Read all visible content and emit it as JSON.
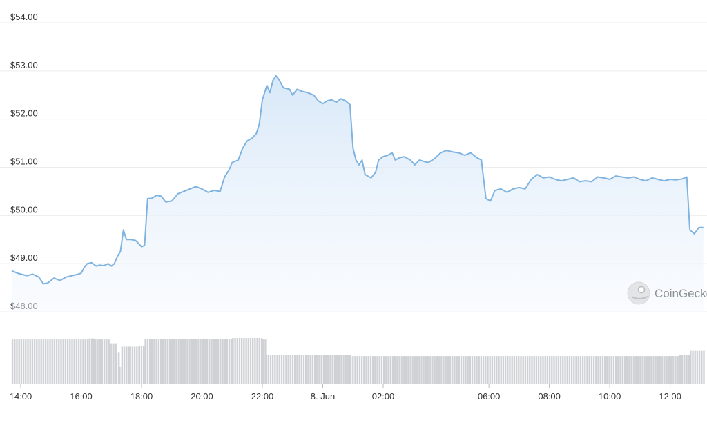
{
  "chart_data": {
    "type": "area",
    "title": "",
    "xlabel": "",
    "ylabel": "",
    "ylim": [
      48.0,
      54.0
    ],
    "grid": true,
    "y_ticks": [
      "$54.00",
      "$53.00",
      "$52.00",
      "$51.00",
      "$50.00",
      "$49.00",
      "$48.00"
    ],
    "y_tick_values": [
      54,
      53,
      52,
      51,
      50,
      49,
      48
    ],
    "x_ticks": [
      {
        "label": "14:00",
        "t": 0
      },
      {
        "label": "16:00",
        "t": 2
      },
      {
        "label": "18:00",
        "t": 4
      },
      {
        "label": "20:00",
        "t": 6
      },
      {
        "label": "22:00",
        "t": 8
      },
      {
        "label": "8. Jun",
        "t": 10
      },
      {
        "label": "02:00",
        "t": 12
      },
      {
        "label": "06:00",
        "t": 15.5
      },
      {
        "label": "08:00",
        "t": 17.5
      },
      {
        "label": "10:00",
        "t": 19.5
      },
      {
        "label": "12:00",
        "t": 21.5
      }
    ],
    "x_unit": "hours since 14:00",
    "series": [
      {
        "kind": "price",
        "color": "#7fb3e0",
        "points": [
          [
            -0.3,
            48.85
          ],
          [
            -0.1,
            48.8
          ],
          [
            0.2,
            48.75
          ],
          [
            0.4,
            48.78
          ],
          [
            0.6,
            48.72
          ],
          [
            0.75,
            48.58
          ],
          [
            0.9,
            48.6
          ],
          [
            1.1,
            48.7
          ],
          [
            1.3,
            48.65
          ],
          [
            1.5,
            48.72
          ],
          [
            1.7,
            48.75
          ],
          [
            1.9,
            48.78
          ],
          [
            2.0,
            48.8
          ],
          [
            2.1,
            48.92
          ],
          [
            2.2,
            49.0
          ],
          [
            2.35,
            49.02
          ],
          [
            2.5,
            48.95
          ],
          [
            2.6,
            48.97
          ],
          [
            2.75,
            48.96
          ],
          [
            2.9,
            49.0
          ],
          [
            3.0,
            48.95
          ],
          [
            3.1,
            49.0
          ],
          [
            3.2,
            49.15
          ],
          [
            3.3,
            49.25
          ],
          [
            3.4,
            49.7
          ],
          [
            3.5,
            49.5
          ],
          [
            3.65,
            49.5
          ],
          [
            3.8,
            49.48
          ],
          [
            3.9,
            49.42
          ],
          [
            4.0,
            49.35
          ],
          [
            4.1,
            49.38
          ],
          [
            4.2,
            50.35
          ],
          [
            4.35,
            50.36
          ],
          [
            4.5,
            50.42
          ],
          [
            4.65,
            50.4
          ],
          [
            4.8,
            50.28
          ],
          [
            5.0,
            50.3
          ],
          [
            5.2,
            50.45
          ],
          [
            5.4,
            50.5
          ],
          [
            5.6,
            50.55
          ],
          [
            5.8,
            50.6
          ],
          [
            6.0,
            50.55
          ],
          [
            6.2,
            50.48
          ],
          [
            6.4,
            50.52
          ],
          [
            6.6,
            50.5
          ],
          [
            6.75,
            50.8
          ],
          [
            6.9,
            50.95
          ],
          [
            7.0,
            51.1
          ],
          [
            7.2,
            51.15
          ],
          [
            7.35,
            51.4
          ],
          [
            7.5,
            51.55
          ],
          [
            7.65,
            51.6
          ],
          [
            7.8,
            51.7
          ],
          [
            7.9,
            51.9
          ],
          [
            8.0,
            52.4
          ],
          [
            8.15,
            52.7
          ],
          [
            8.25,
            52.55
          ],
          [
            8.35,
            52.8
          ],
          [
            8.45,
            52.9
          ],
          [
            8.55,
            52.82
          ],
          [
            8.7,
            52.65
          ],
          [
            8.9,
            52.62
          ],
          [
            9.0,
            52.5
          ],
          [
            9.15,
            52.62
          ],
          [
            9.3,
            52.58
          ],
          [
            9.5,
            52.55
          ],
          [
            9.7,
            52.5
          ],
          [
            9.85,
            52.38
          ],
          [
            10.0,
            52.32
          ],
          [
            10.15,
            52.38
          ],
          [
            10.3,
            52.4
          ],
          [
            10.45,
            52.35
          ],
          [
            10.6,
            52.42
          ],
          [
            10.75,
            52.38
          ],
          [
            10.9,
            52.3
          ],
          [
            11.0,
            51.4
          ],
          [
            11.1,
            51.15
          ],
          [
            11.2,
            51.05
          ],
          [
            11.3,
            51.15
          ],
          [
            11.4,
            50.85
          ],
          [
            11.6,
            50.78
          ],
          [
            11.75,
            50.9
          ],
          [
            11.85,
            51.15
          ],
          [
            12.0,
            51.22
          ],
          [
            12.15,
            51.25
          ],
          [
            12.3,
            51.3
          ],
          [
            12.4,
            51.15
          ],
          [
            12.55,
            51.2
          ],
          [
            12.7,
            51.22
          ],
          [
            12.9,
            51.15
          ],
          [
            13.05,
            51.05
          ],
          [
            13.2,
            51.15
          ],
          [
            13.35,
            51.12
          ],
          [
            13.5,
            51.1
          ],
          [
            13.7,
            51.18
          ],
          [
            13.9,
            51.3
          ],
          [
            14.1,
            51.35
          ],
          [
            14.3,
            51.32
          ],
          [
            14.5,
            51.3
          ],
          [
            14.7,
            51.25
          ],
          [
            14.9,
            51.3
          ],
          [
            15.1,
            51.2
          ],
          [
            15.25,
            51.15
          ],
          [
            15.4,
            50.35
          ],
          [
            15.55,
            50.3
          ],
          [
            15.7,
            50.52
          ],
          [
            15.9,
            50.55
          ],
          [
            16.1,
            50.48
          ],
          [
            16.3,
            50.55
          ],
          [
            16.5,
            50.58
          ],
          [
            16.7,
            50.55
          ],
          [
            16.9,
            50.75
          ],
          [
            17.1,
            50.85
          ],
          [
            17.3,
            50.78
          ],
          [
            17.5,
            50.8
          ],
          [
            17.7,
            50.75
          ],
          [
            17.9,
            50.72
          ],
          [
            18.1,
            50.75
          ],
          [
            18.3,
            50.78
          ],
          [
            18.5,
            50.7
          ],
          [
            18.7,
            50.72
          ],
          [
            18.9,
            50.7
          ],
          [
            19.1,
            50.8
          ],
          [
            19.3,
            50.78
          ],
          [
            19.5,
            50.75
          ],
          [
            19.7,
            50.82
          ],
          [
            19.9,
            50.8
          ],
          [
            20.1,
            50.78
          ],
          [
            20.3,
            50.8
          ],
          [
            20.5,
            50.75
          ],
          [
            20.7,
            50.72
          ],
          [
            20.9,
            50.78
          ],
          [
            21.1,
            50.75
          ],
          [
            21.3,
            50.72
          ],
          [
            21.5,
            50.75
          ],
          [
            21.7,
            50.74
          ],
          [
            21.9,
            50.76
          ],
          [
            22.05,
            50.8
          ],
          [
            22.15,
            49.7
          ],
          [
            22.3,
            49.62
          ],
          [
            22.45,
            49.75
          ],
          [
            22.6,
            49.75
          ]
        ]
      },
      {
        "kind": "volume",
        "color": "#cfd1d4",
        "segments": [
          {
            "t0": -0.3,
            "t1": 2.25,
            "v": 0.93
          },
          {
            "t0": 2.25,
            "t1": 2.45,
            "v": 0.95
          },
          {
            "t0": 2.45,
            "t1": 2.9,
            "v": 0.93
          },
          {
            "t0": 2.9,
            "t1": 3.15,
            "v": 0.85
          },
          {
            "t0": 3.15,
            "t1": 3.25,
            "v": 0.65
          },
          {
            "t0": 3.25,
            "t1": 3.33,
            "v": 0.35
          },
          {
            "t0": 3.33,
            "t1": 3.6,
            "v": 0.78
          },
          {
            "t0": 3.6,
            "t1": 3.9,
            "v": 0.78
          },
          {
            "t0": 3.9,
            "t1": 4.1,
            "v": 0.8
          },
          {
            "t0": 4.1,
            "t1": 7.0,
            "v": 0.94
          },
          {
            "t0": 7.0,
            "t1": 8.0,
            "v": 0.96
          },
          {
            "t0": 8.0,
            "t1": 8.1,
            "v": 0.93
          },
          {
            "t0": 8.1,
            "t1": 10.9,
            "v": 0.61
          },
          {
            "t0": 10.9,
            "t1": 21.8,
            "v": 0.58
          },
          {
            "t0": 21.8,
            "t1": 22.15,
            "v": 0.61
          },
          {
            "t0": 22.15,
            "t1": 22.6,
            "v": 0.69
          }
        ]
      }
    ],
    "watermark": "CoinGecko"
  }
}
